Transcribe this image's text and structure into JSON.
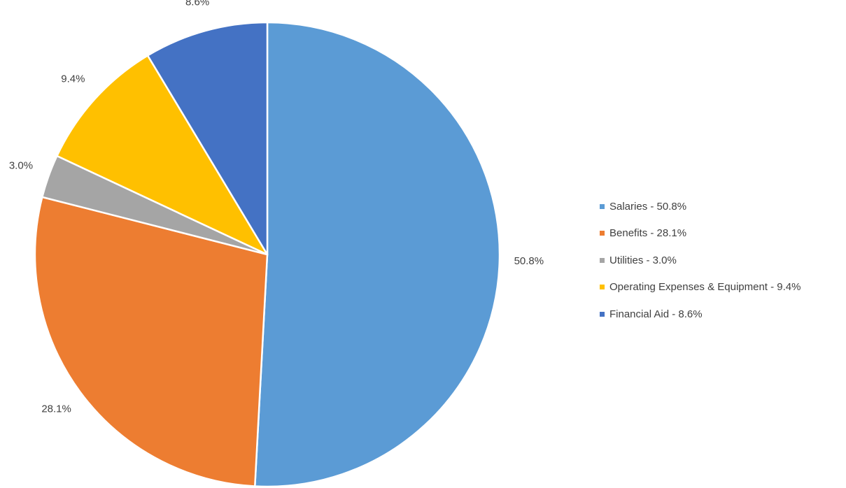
{
  "chart_data": {
    "type": "pie",
    "title": "",
    "legend_position": "right",
    "slices": [
      {
        "label": "Salaries - 50.8%",
        "value": 50.8,
        "data_label": "50.8%",
        "color": "#5B9BD5"
      },
      {
        "label": "Benefits - 28.1%",
        "value": 28.1,
        "data_label": "28.1%",
        "color": "#ED7D31"
      },
      {
        "label": "Utilities - 3.0%",
        "value": 3.0,
        "data_label": "3.0%",
        "color": "#A5A5A5"
      },
      {
        "label": "Operating Expenses & Equipment - 9.4%",
        "value": 9.4,
        "data_label": "9.4%",
        "color": "#FFC000"
      },
      {
        "label": "Financial Aid - 8.6%",
        "value": 8.6,
        "data_label": "8.6%",
        "color": "#4472C4"
      }
    ]
  }
}
